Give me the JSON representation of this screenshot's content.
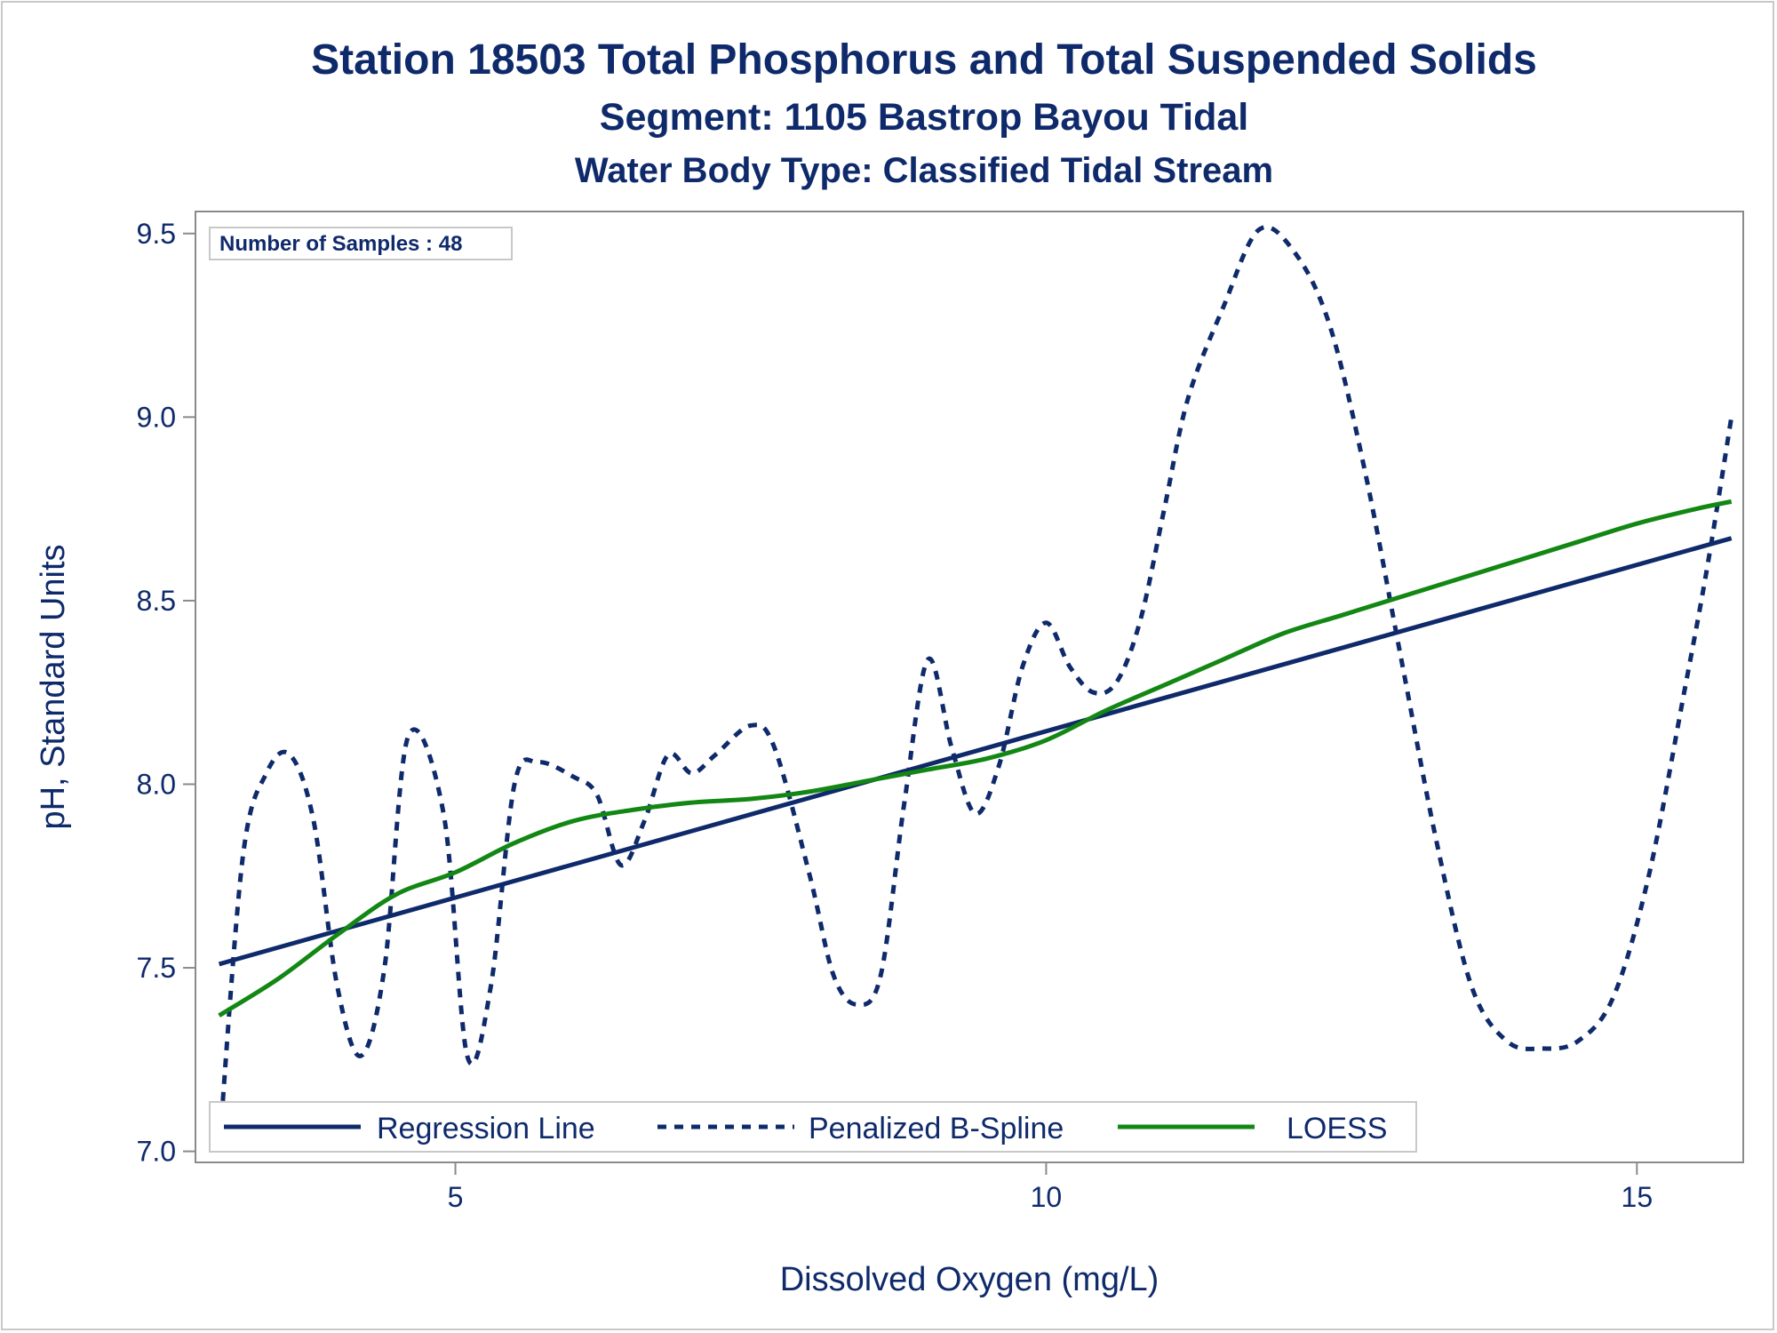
{
  "chart_data": {
    "type": "line",
    "title": "Station 18503  Total Phosphorus and Total Suspended Solids",
    "subtitle": "Segment: 1105  Bastrop Bayou Tidal",
    "subtitle2": "Water Body Type: Classified Tidal Stream",
    "xlabel": "Dissolved Oxygen (mg/L)",
    "ylabel": "pH, Standard Units",
    "xlim": [
      2.8,
      15.9
    ],
    "ylim": [
      6.97,
      9.56
    ],
    "xticks": [
      5,
      10,
      15
    ],
    "yticks": [
      7.0,
      7.5,
      8.0,
      8.5,
      9.0,
      9.5
    ],
    "annotation": "Number of Samples : 48",
    "legend_position": "bottom-left",
    "series": [
      {
        "name": "Regression Line",
        "style": "solid",
        "color": "#0f2a6b",
        "x": [
          3.0,
          15.8
        ],
        "y": [
          7.51,
          8.67
        ]
      },
      {
        "name": "Penalized B-Spline",
        "style": "dashed",
        "color": "#0f2a6b",
        "x": [
          3.0,
          3.2,
          3.4,
          3.6,
          3.8,
          4.0,
          4.2,
          4.4,
          4.6,
          4.9,
          5.1,
          5.3,
          5.5,
          5.7,
          6.0,
          6.2,
          6.4,
          6.6,
          6.8,
          7.0,
          7.2,
          7.5,
          7.7,
          8.0,
          8.2,
          8.4,
          8.6,
          8.8,
          9.0,
          9.2,
          9.4,
          9.6,
          9.8,
          10.0,
          10.2,
          10.4,
          10.6,
          10.8,
          11.0,
          11.2,
          11.5,
          11.8,
          12.1,
          12.4,
          12.7,
          13.0,
          13.3,
          13.6,
          13.9,
          14.2,
          14.5,
          14.8,
          15.1,
          15.4,
          15.6,
          15.8
        ],
        "y": [
          7.0,
          7.8,
          8.03,
          8.08,
          7.9,
          7.45,
          7.26,
          7.5,
          8.13,
          7.92,
          7.26,
          7.45,
          8.0,
          8.06,
          8.02,
          7.97,
          7.78,
          7.9,
          8.08,
          8.03,
          8.08,
          8.16,
          8.1,
          7.75,
          7.48,
          7.4,
          7.48,
          7.95,
          8.34,
          8.1,
          7.92,
          8.05,
          8.32,
          8.44,
          8.32,
          8.25,
          8.28,
          8.45,
          8.75,
          9.05,
          9.3,
          9.51,
          9.45,
          9.25,
          8.85,
          8.35,
          7.85,
          7.45,
          7.3,
          7.28,
          7.3,
          7.42,
          7.75,
          8.25,
          8.6,
          9.0
        ]
      },
      {
        "name": "LOESS",
        "style": "solid",
        "color": "#138713",
        "x": [
          3.0,
          3.5,
          4.0,
          4.5,
          5.0,
          5.5,
          6.0,
          6.5,
          7.0,
          7.5,
          8.0,
          8.5,
          9.0,
          9.5,
          10.0,
          10.5,
          11.0,
          11.5,
          12.0,
          12.5,
          13.0,
          13.5,
          14.0,
          14.5,
          15.0,
          15.5,
          15.8
        ],
        "y": [
          7.37,
          7.47,
          7.59,
          7.7,
          7.76,
          7.84,
          7.9,
          7.93,
          7.95,
          7.96,
          7.98,
          8.01,
          8.04,
          8.07,
          8.12,
          8.2,
          8.27,
          8.34,
          8.41,
          8.46,
          8.51,
          8.56,
          8.61,
          8.66,
          8.71,
          8.75,
          8.77
        ]
      }
    ]
  }
}
